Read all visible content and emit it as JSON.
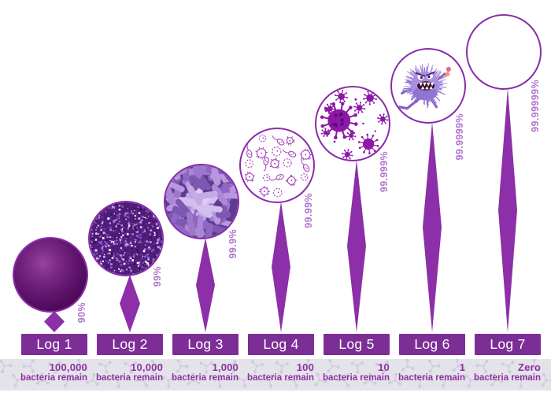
{
  "columns": [
    {
      "label": "Log 1",
      "percent": "90%",
      "remaining_count": "100,000",
      "remaining_label": "bacteria remain",
      "circle_art": "bacteria-colony"
    },
    {
      "label": "Log 2",
      "percent": "99%",
      "remaining_count": "10,000",
      "remaining_label": "bacteria remain",
      "circle_art": "bacteria-glitter"
    },
    {
      "label": "Log 3",
      "percent": "99.9%",
      "remaining_count": "1,000",
      "remaining_label": "bacteria remain",
      "circle_art": "bacteria-rods"
    },
    {
      "label": "Log 4",
      "percent": "99.99%",
      "remaining_count": "100",
      "remaining_label": "bacteria remain",
      "circle_art": "microbe-outlines"
    },
    {
      "label": "Log 5",
      "percent": "99.999%",
      "remaining_count": "10",
      "remaining_label": "bacteria remain",
      "circle_art": "virus-particles"
    },
    {
      "label": "Log 6",
      "percent": "99.9999%",
      "remaining_count": "1",
      "remaining_label": "bacteria remain",
      "circle_art": "germ-monster"
    },
    {
      "label": "Log 7",
      "percent": "99.99999%",
      "remaining_count": "Zero",
      "remaining_label": "bacteria remain",
      "circle_art": "empty-circle"
    }
  ],
  "colors": {
    "box_purple": "#7c2e96",
    "spike_purple": "#8c2fa8",
    "circle_stroke": "#8a2da8",
    "percent_text": "#b274ce",
    "remaining_text": "#8d33a0",
    "strip_background": "#e4e3ea",
    "strip_pattern": "#d2cfde",
    "label_text": "#ffffff"
  }
}
